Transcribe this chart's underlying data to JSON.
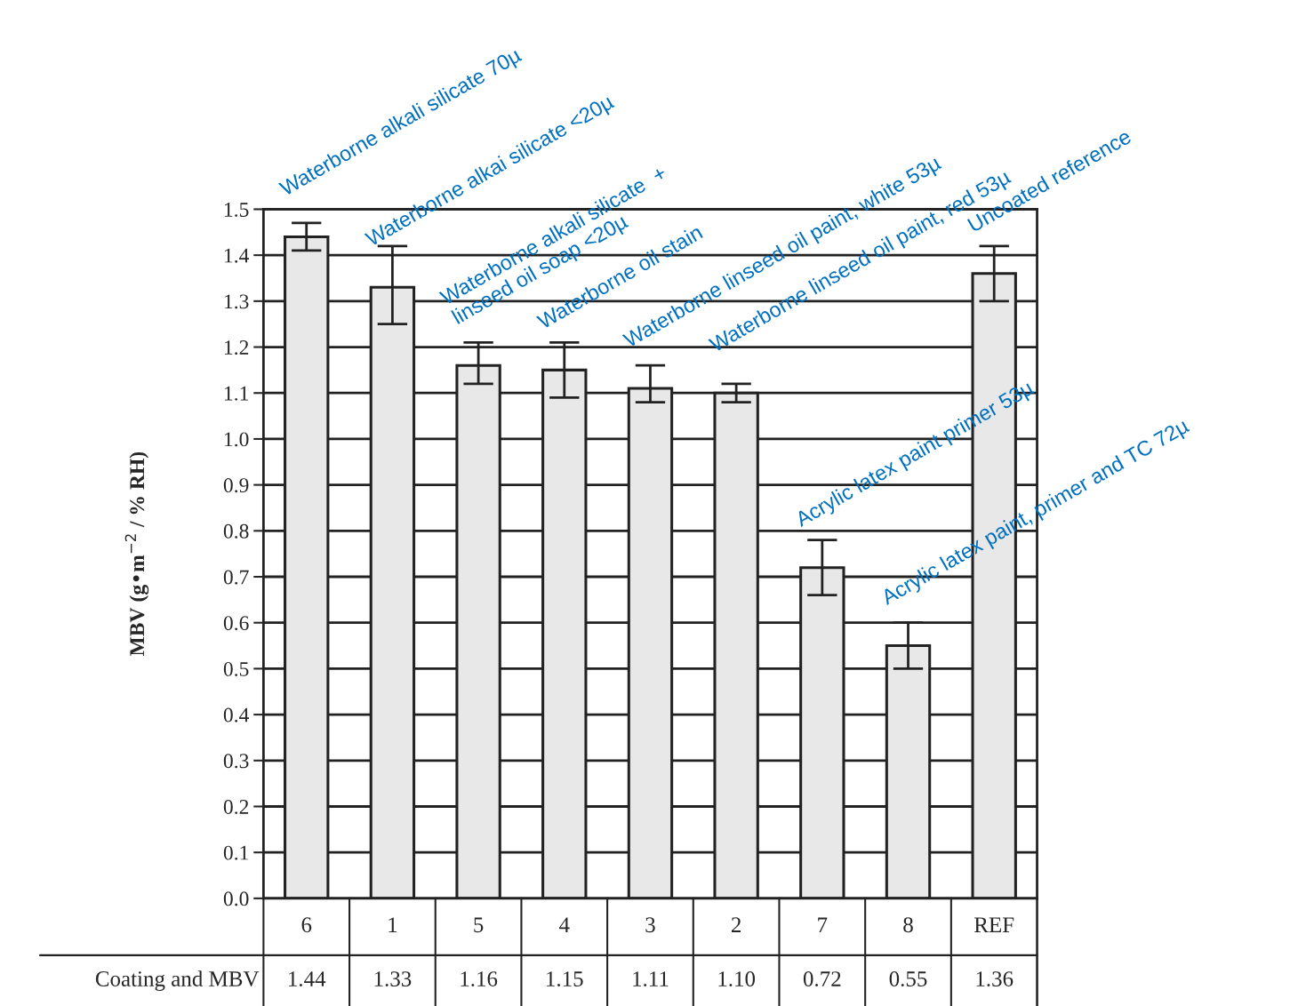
{
  "chart_data": {
    "type": "bar",
    "ylabel": "MBV (g•m$^{−2}$ / % RH)",
    "categories": [
      "6",
      "1",
      "5",
      "4",
      "3",
      "2",
      "7",
      "8",
      "REF"
    ],
    "series": [
      {
        "color": "#e8e8e8",
        "values": [
          1.44,
          1.33,
          1.16,
          1.15,
          1.11,
          1.1,
          0.72,
          0.55,
          1.36
        ],
        "errors": [
          [
            1.41,
            1.47
          ],
          [
            1.25,
            1.42
          ],
          [
            1.12,
            1.21
          ],
          [
            1.09,
            1.21
          ],
          [
            1.08,
            1.16
          ],
          [
            1.08,
            1.12
          ],
          [
            0.66,
            0.78
          ],
          [
            0.5,
            0.6
          ],
          [
            1.3,
            1.42
          ]
        ]
      }
    ],
    "value_labels": [
      "1.44",
      "1.33",
      "1.16",
      "1.15",
      "1.11",
      "1.10",
      "0.72",
      "0.55",
      "1.36"
    ],
    "ylim": [
      0,
      1.5
    ],
    "yticks": [
      {
        "value": 0,
        "label": "0.0"
      },
      {
        "value": 0.1,
        "label": "0.1"
      },
      {
        "value": 0.2,
        "label": "0.2"
      },
      {
        "value": 0.3,
        "label": "0.3"
      },
      {
        "value": 0.4,
        "label": "0.4"
      },
      {
        "value": 0.5,
        "label": "0.5"
      },
      {
        "value": 0.6,
        "label": "0.6"
      },
      {
        "value": 0.7,
        "label": "0.7"
      },
      {
        "value": 0.8,
        "label": "0.8"
      },
      {
        "value": 0.9,
        "label": "0.9"
      },
      {
        "value": 1.0,
        "label": "1.0"
      },
      {
        "value": 1.1,
        "label": "1.1"
      },
      {
        "value": 1.2,
        "label": "1.2"
      },
      {
        "value": 1.3,
        "label": "1.3"
      },
      {
        "value": 1.4,
        "label": "1.4"
      },
      {
        "value": 1.5,
        "label": "1.5"
      }
    ],
    "grid": "y",
    "annotations": [
      "Coating and MBV",
      {
        "text": "Waterborne alkali silicate 70µ",
        "x": "6",
        "y": 1.44
      },
      {
        "text": "Waterborne alkai silicate <20µ",
        "x": "1",
        "y": 1.33
      },
      {
        "text": "Waterborne alkali silicate  +\nlinseed oil soap <20µ",
        "x": "5",
        "y": 1.16
      },
      {
        "text": "Waterborne oil stain",
        "x": "4",
        "y": 1.15
      },
      {
        "text": "Waterborne linseed oil paint, white 53µ",
        "x": "3",
        "y": 1.11
      },
      {
        "text": "Waterborne linseed oil paint, red 53µ",
        "x": "2",
        "y": 1.1
      },
      {
        "text": "Acrylic latex paint primer 53µ",
        "x": "7",
        "y": 0.72
      },
      {
        "text": "Acrylic latex paint, primer and TC 72µ",
        "x": "8",
        "y": 0.55
      },
      {
        "text": "Uncoated reference",
        "x": "REF",
        "y": 1.36
      }
    ]
  }
}
